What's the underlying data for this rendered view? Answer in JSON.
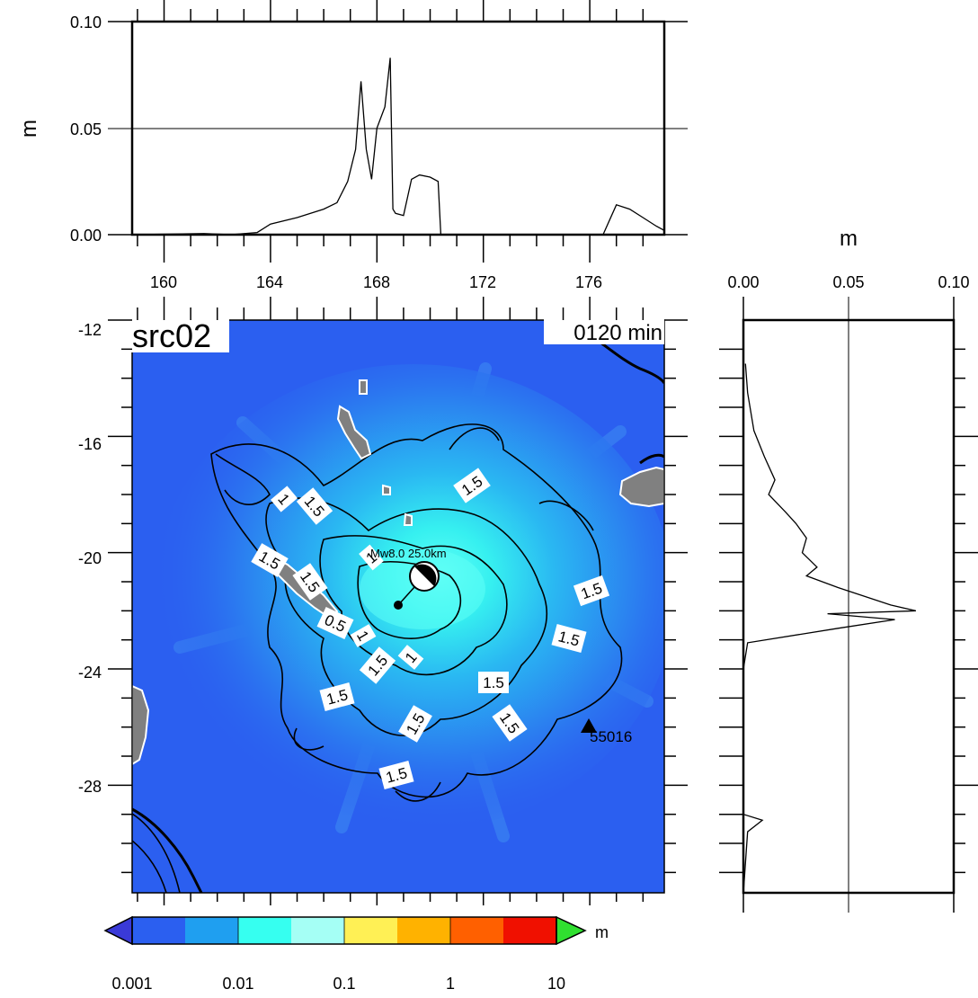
{
  "top_panel": {
    "ylabel": "m",
    "y_ticks": [
      "0.00",
      "0.05",
      "0.10"
    ],
    "x_ticks": [
      "160",
      "164",
      "168",
      "172",
      "176"
    ]
  },
  "right_panel": {
    "xlabel": "m",
    "x_ticks": [
      "0.00",
      "0.05",
      "0.10"
    ]
  },
  "map": {
    "title": "src02",
    "time_label": "0120 min",
    "y_ticks": [
      "-12",
      "-16",
      "-20",
      "-24",
      "-28"
    ],
    "station_label": "55016",
    "source_label": "Mw8.0  25.0km",
    "contour_labels": [
      "1.5",
      "1",
      "1.5",
      "1.5",
      "1.5",
      "0.5",
      "1",
      "1",
      "1.5",
      "1",
      "1.5",
      "1.5",
      "1.5",
      "1.5",
      "1.5",
      "1.5",
      "1.5",
      "1.5"
    ]
  },
  "colorbar": {
    "unit": "m",
    "ticks": [
      "0.001",
      "0.01",
      "0.1",
      "1",
      "10"
    ],
    "colors": [
      "#2b5ff0",
      "#1f9ff0",
      "#36fff0",
      "#a5fff5",
      "#fff055",
      "#ffb200",
      "#ff6000",
      "#f01000"
    ],
    "under_color": "#3a3ad8",
    "over_color": "#30e030"
  },
  "chart_data": [
    {
      "type": "line",
      "title": "",
      "xlabel": "",
      "ylabel": "m",
      "xlim": [
        158.8,
        178.8
      ],
      "ylim": [
        0,
        0.1
      ],
      "grid": false,
      "series": [
        {
          "x": [
            158.8,
            161.5,
            162.5,
            163.5,
            164.0,
            165.0,
            166.0,
            166.5,
            166.9,
            167.2,
            167.4,
            167.6,
            167.8,
            168.0,
            168.3,
            168.5,
            168.6,
            168.7,
            169.0,
            169.3,
            169.6,
            170.0,
            170.3,
            170.4,
            175.0,
            176.5,
            177.0,
            177.5,
            178.0,
            178.5,
            178.8
          ],
          "y": [
            0.0,
            0.0005,
            0.0,
            0.001,
            0.005,
            0.008,
            0.012,
            0.015,
            0.025,
            0.04,
            0.072,
            0.04,
            0.026,
            0.05,
            0.06,
            0.083,
            0.012,
            0.01,
            0.009,
            0.026,
            0.028,
            0.027,
            0.025,
            0.0,
            0.0,
            0.0,
            0.014,
            0.012,
            0.008,
            0.004,
            0.002
          ]
        }
      ]
    },
    {
      "type": "line",
      "title": "",
      "xlabel": "m",
      "ylabel": "",
      "xlim": [
        0,
        0.1
      ],
      "ylim": [
        -31.7,
        -12
      ],
      "grid": false,
      "series": [
        {
          "x": [
            0.001,
            0.002,
            0.005,
            0.01,
            0.015,
            0.012,
            0.02,
            0.025,
            0.03,
            0.028,
            0.035,
            0.03,
            0.045,
            0.07,
            0.082,
            0.04,
            0.072,
            0.045,
            0.002,
            0.0,
            0.0,
            0.009,
            0.002,
            0.0
          ],
          "y": [
            -13.5,
            -14.5,
            -15.8,
            -16.7,
            -17.5,
            -18.0,
            -18.6,
            -19.0,
            -19.5,
            -20.0,
            -20.5,
            -20.8,
            -21.2,
            -21.8,
            -22.0,
            -22.1,
            -22.3,
            -22.6,
            -23.1,
            -24.0,
            -29.0,
            -29.2,
            -29.6,
            -31.7
          ]
        }
      ]
    }
  ]
}
